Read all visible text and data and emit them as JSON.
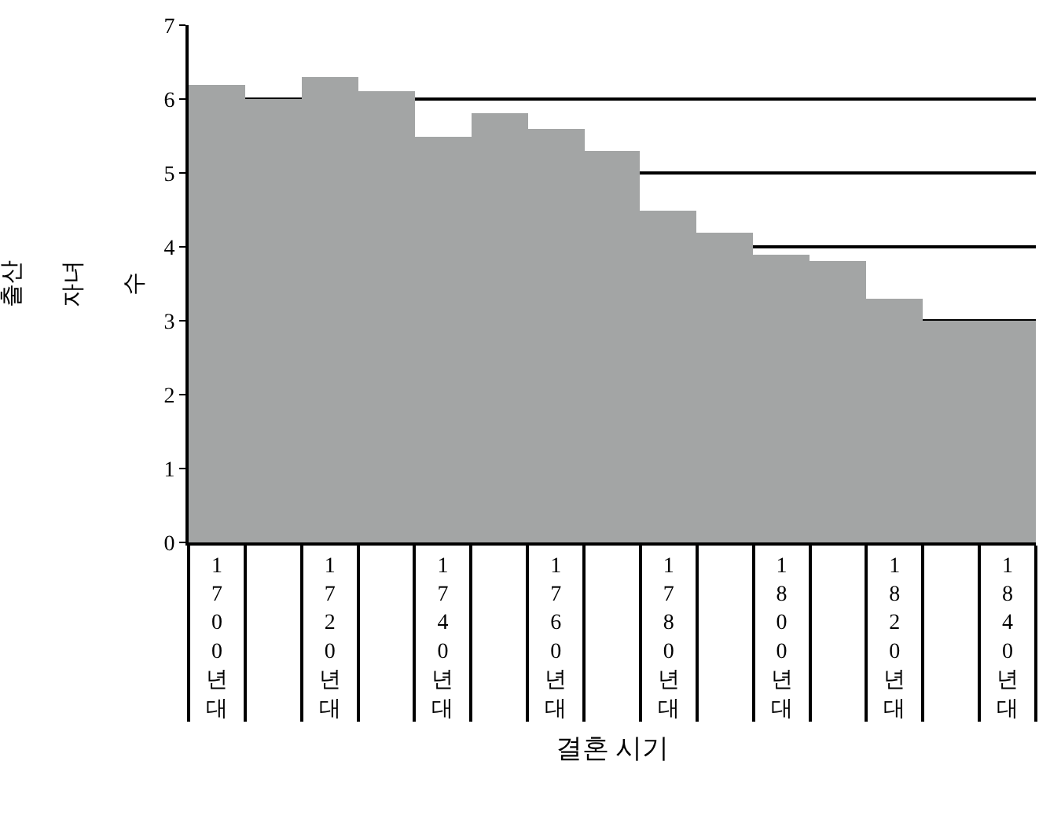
{
  "chart_data": {
    "type": "bar",
    "xlabel": "결혼 시기",
    "ylabel": "출산 자녀 수",
    "categories": [
      "1700년대",
      null,
      "1720년대",
      null,
      "1740년대",
      null,
      "1760년대",
      null,
      "1780년대",
      null,
      "1800년대",
      null,
      "1820년대",
      null,
      "1840년대"
    ],
    "values": [
      6.2,
      6.0,
      6.3,
      6.1,
      5.5,
      5.8,
      5.6,
      5.3,
      4.5,
      4.2,
      3.9,
      3.8,
      3.3,
      3.0,
      3.0
    ],
    "color": "#a3a5a5",
    "ylim": [
      0,
      7
    ],
    "yticks": [
      0,
      1,
      2,
      3,
      4,
      5,
      6,
      7
    ],
    "grid": "y"
  }
}
